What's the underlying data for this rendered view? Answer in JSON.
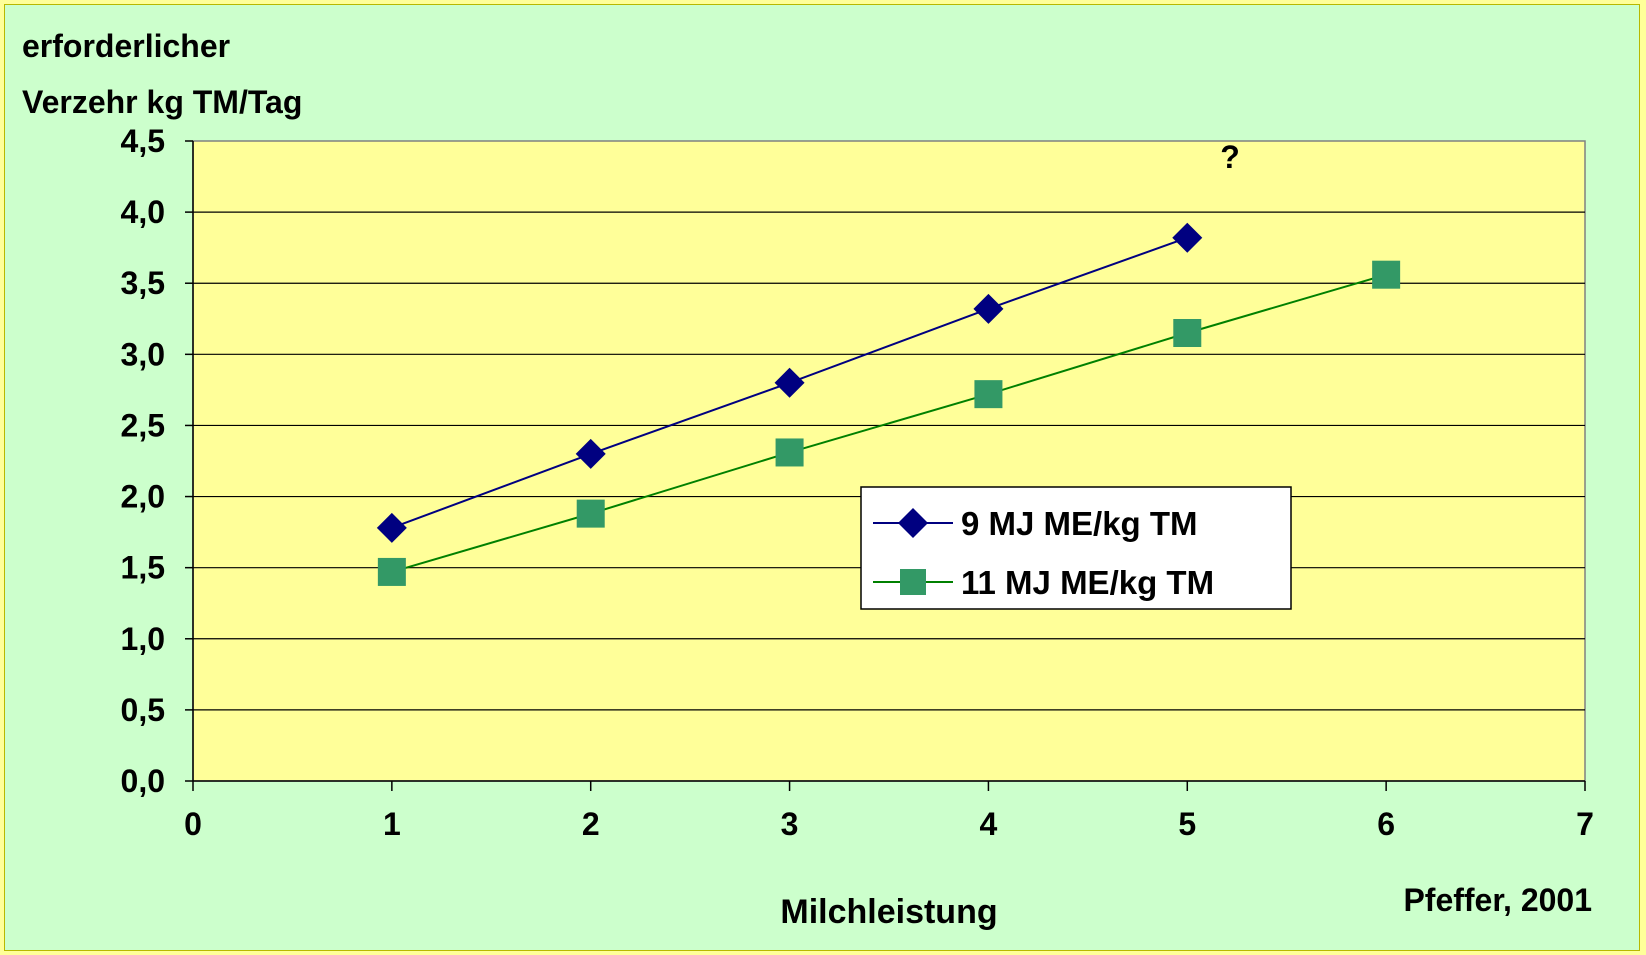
{
  "chart_data": {
    "type": "line",
    "ylabel_lines": [
      "erforderlicher",
      "Verzehr kg TM/Tag"
    ],
    "xlabel": "Milchleistung",
    "source": "Pfeffer, 2001",
    "annotation": "?",
    "xlim": [
      0,
      7
    ],
    "ylim": [
      0,
      4.5
    ],
    "xticks": [
      "0",
      "1",
      "2",
      "3",
      "4",
      "5",
      "6",
      "7"
    ],
    "yticks": [
      "0,0",
      "0,5",
      "1,0",
      "1,5",
      "2,0",
      "2,5",
      "3,0",
      "3,5",
      "4,0",
      "4,5"
    ],
    "grid": "horizontal",
    "legend_position": "center-right",
    "series": [
      {
        "name": "9  MJ ME/kg TM",
        "marker": "diamond",
        "color": "#000080",
        "x": [
          1,
          2,
          3,
          4,
          5
        ],
        "y": [
          1.78,
          2.3,
          2.8,
          3.32,
          3.82
        ]
      },
      {
        "name": "11  MJ ME/kg TM",
        "marker": "square",
        "color": "#339966",
        "line_color": "#008000",
        "x": [
          1,
          2,
          3,
          4,
          5,
          6
        ],
        "y": [
          1.47,
          1.88,
          2.31,
          2.72,
          3.15,
          3.56
        ]
      }
    ]
  }
}
